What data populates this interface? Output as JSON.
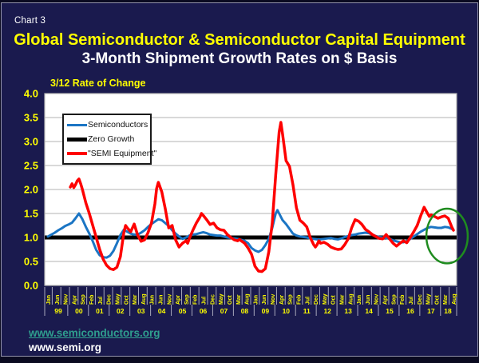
{
  "slide": {
    "chart_label": "Chart 3",
    "title": "Global Semiconductor & Semiconductor Capital Equipment",
    "subtitle": "3-Month Shipment Growth Rates on $ Basis",
    "links": [
      {
        "text": "www.semiconductors.org",
        "color": "#2f9e8e"
      },
      {
        "text": "www.semi.org",
        "color": "#ffffff"
      }
    ],
    "colors": {
      "background": "#1a1a4e",
      "title_yellow": "#ffff00",
      "text_white": "#ffffff",
      "frame_gray": "#9494ac"
    }
  },
  "chart_data": {
    "type": "line",
    "title": "3/12 Rate of Change",
    "x_unit": "months since Jan-1999, monthly series Jan-1999 to Aug-2018",
    "ylim": [
      0.0,
      4.0
    ],
    "y_ticks": [
      0.0,
      0.5,
      1.0,
      1.5,
      2.0,
      2.5,
      3.0,
      3.5,
      4.0
    ],
    "grid": true,
    "grid_color": "#b3b3b3",
    "plot_bg": "#ffffff",
    "axis_tick_color": "#a8a8bc",
    "axis_label_color": "#ffff00",
    "legend_position": "top-left",
    "x_tick_step_months": 5,
    "x_tick_labels": [
      "Jan",
      "Jun",
      "Nov",
      "Apr",
      "Sep",
      "Feb",
      "Jul",
      "Dec",
      "May",
      "Oct",
      "Mar",
      "Aug",
      "Jan",
      "Jun",
      "Nov",
      "Apr",
      "Sep",
      "Feb",
      "Jul",
      "Dec",
      "May",
      "Oct",
      "Mar",
      "Aug",
      "Jan",
      "Jun",
      "Nov",
      "Apr",
      "Sep",
      "Feb",
      "Jul",
      "Dec",
      "May",
      "Oct",
      "Mar",
      "Aug",
      "Jan",
      "Jun",
      "Nov",
      "Apr",
      "Sep",
      "Feb",
      "Jul",
      "Dec",
      "May",
      "Oct",
      "Mar",
      "Aug"
    ],
    "year_labels": [
      "99",
      "00",
      "01",
      "02",
      "03",
      "04",
      "05",
      "06",
      "07",
      "08",
      "09",
      "10",
      "11",
      "12",
      "13",
      "14",
      "15",
      "16",
      "17",
      "18"
    ],
    "draw_order": [
      1,
      0,
      2
    ],
    "series": [
      {
        "name": "Semiconductors",
        "color": "#1b75c4",
        "line_width": 3,
        "points": [
          [
            0,
            1.02
          ],
          [
            2,
            1.06
          ],
          [
            4,
            1.1
          ],
          [
            6,
            1.15
          ],
          [
            8,
            1.19
          ],
          [
            10,
            1.24
          ],
          [
            12,
            1.27
          ],
          [
            14,
            1.31
          ],
          [
            16,
            1.4
          ],
          [
            18,
            1.5
          ],
          [
            20,
            1.38
          ],
          [
            22,
            1.22
          ],
          [
            24,
            1.08
          ],
          [
            26,
            0.92
          ],
          [
            28,
            0.74
          ],
          [
            30,
            0.63
          ],
          [
            32,
            0.59
          ],
          [
            34,
            0.58
          ],
          [
            36,
            0.62
          ],
          [
            38,
            0.72
          ],
          [
            40,
            0.88
          ],
          [
            42,
            1.05
          ],
          [
            44,
            1.16
          ],
          [
            46,
            1.12
          ],
          [
            48,
            1.08
          ],
          [
            50,
            1.06
          ],
          [
            52,
            1.06
          ],
          [
            54,
            1.1
          ],
          [
            56,
            1.15
          ],
          [
            58,
            1.22
          ],
          [
            60,
            1.28
          ],
          [
            62,
            1.33
          ],
          [
            64,
            1.38
          ],
          [
            66,
            1.36
          ],
          [
            68,
            1.3
          ],
          [
            70,
            1.24
          ],
          [
            72,
            1.15
          ],
          [
            74,
            1.08
          ],
          [
            76,
            1.02
          ],
          [
            78,
            0.97
          ],
          [
            80,
            1.0
          ],
          [
            82,
            1.04
          ],
          [
            84,
            1.06
          ],
          [
            86,
            1.07
          ],
          [
            88,
            1.09
          ],
          [
            90,
            1.11
          ],
          [
            92,
            1.09
          ],
          [
            94,
            1.06
          ],
          [
            96,
            1.05
          ],
          [
            98,
            1.04
          ],
          [
            100,
            1.04
          ],
          [
            102,
            1.02
          ],
          [
            104,
            1.0
          ],
          [
            106,
            0.99
          ],
          [
            108,
            0.98
          ],
          [
            110,
            0.97
          ],
          [
            112,
            0.95
          ],
          [
            114,
            0.93
          ],
          [
            116,
            0.88
          ],
          [
            118,
            0.78
          ],
          [
            120,
            0.73
          ],
          [
            122,
            0.7
          ],
          [
            124,
            0.74
          ],
          [
            126,
            0.84
          ],
          [
            128,
            0.97
          ],
          [
            130,
            1.2
          ],
          [
            132,
            1.5
          ],
          [
            133,
            1.57
          ],
          [
            134,
            1.5
          ],
          [
            136,
            1.36
          ],
          [
            138,
            1.28
          ],
          [
            140,
            1.18
          ],
          [
            142,
            1.08
          ],
          [
            144,
            1.04
          ],
          [
            146,
            1.02
          ],
          [
            148,
            1.01
          ],
          [
            150,
            1.0
          ],
          [
            152,
            0.98
          ],
          [
            154,
            0.97
          ],
          [
            156,
            0.96
          ],
          [
            158,
            0.96
          ],
          [
            160,
            0.97
          ],
          [
            162,
            0.98
          ],
          [
            164,
            0.99
          ],
          [
            166,
            0.97
          ],
          [
            168,
            0.96
          ],
          [
            170,
            0.98
          ],
          [
            172,
            1.01
          ],
          [
            174,
            1.03
          ],
          [
            176,
            1.05
          ],
          [
            178,
            1.06
          ],
          [
            180,
            1.08
          ],
          [
            182,
            1.09
          ],
          [
            184,
            1.1
          ],
          [
            186,
            1.09
          ],
          [
            188,
            1.06
          ],
          [
            190,
            1.03
          ],
          [
            192,
            1.01
          ],
          [
            194,
            1.0
          ],
          [
            196,
            0.99
          ],
          [
            198,
            0.97
          ],
          [
            200,
            0.94
          ],
          [
            202,
            0.92
          ],
          [
            204,
            0.9
          ],
          [
            206,
            0.9
          ],
          [
            208,
            0.93
          ],
          [
            210,
            0.97
          ],
          [
            212,
            1.02
          ],
          [
            214,
            1.07
          ],
          [
            216,
            1.12
          ],
          [
            218,
            1.16
          ],
          [
            220,
            1.2
          ],
          [
            222,
            1.22
          ],
          [
            224,
            1.21
          ],
          [
            226,
            1.2
          ],
          [
            228,
            1.2
          ],
          [
            230,
            1.22
          ],
          [
            232,
            1.21
          ],
          [
            234,
            1.18
          ],
          [
            235,
            1.16
          ]
        ]
      },
      {
        "name": "Zero Growth",
        "color": "#000000",
        "line_width": 5,
        "full_width": true,
        "points": [
          [
            0,
            1.0
          ],
          [
            235,
            1.0
          ]
        ]
      },
      {
        "name": "\"SEMI Equipment\"",
        "color": "#fe0000",
        "line_width": 3.5,
        "points": [
          [
            13,
            2.05
          ],
          [
            14,
            2.12
          ],
          [
            15,
            2.04
          ],
          [
            16,
            2.1
          ],
          [
            17,
            2.18
          ],
          [
            18,
            2.22
          ],
          [
            19,
            2.12
          ],
          [
            20,
            2.0
          ],
          [
            22,
            1.72
          ],
          [
            24,
            1.5
          ],
          [
            26,
            1.25
          ],
          [
            28,
            1.0
          ],
          [
            30,
            0.75
          ],
          [
            32,
            0.55
          ],
          [
            34,
            0.42
          ],
          [
            36,
            0.35
          ],
          [
            38,
            0.33
          ],
          [
            40,
            0.38
          ],
          [
            42,
            0.6
          ],
          [
            44,
            1.1
          ],
          [
            45,
            1.25
          ],
          [
            46,
            1.2
          ],
          [
            48,
            1.12
          ],
          [
            50,
            1.28
          ],
          [
            52,
            1.05
          ],
          [
            54,
            0.92
          ],
          [
            56,
            0.95
          ],
          [
            58,
            1.1
          ],
          [
            60,
            1.3
          ],
          [
            62,
            1.7
          ],
          [
            63,
            2.02
          ],
          [
            64,
            2.15
          ],
          [
            66,
            1.95
          ],
          [
            68,
            1.6
          ],
          [
            70,
            1.2
          ],
          [
            72,
            1.25
          ],
          [
            74,
            0.95
          ],
          [
            76,
            0.8
          ],
          [
            78,
            0.88
          ],
          [
            80,
            0.93
          ],
          [
            81,
            0.88
          ],
          [
            82,
            0.98
          ],
          [
            84,
            1.15
          ],
          [
            86,
            1.3
          ],
          [
            88,
            1.42
          ],
          [
            89,
            1.5
          ],
          [
            90,
            1.46
          ],
          [
            92,
            1.37
          ],
          [
            94,
            1.27
          ],
          [
            96,
            1.3
          ],
          [
            98,
            1.2
          ],
          [
            100,
            1.16
          ],
          [
            102,
            1.15
          ],
          [
            104,
            1.06
          ],
          [
            106,
            1.0
          ],
          [
            108,
            0.95
          ],
          [
            110,
            0.93
          ],
          [
            111,
            0.96
          ],
          [
            112,
            0.93
          ],
          [
            114,
            0.88
          ],
          [
            116,
            0.78
          ],
          [
            118,
            0.65
          ],
          [
            120,
            0.4
          ],
          [
            122,
            0.3
          ],
          [
            124,
            0.29
          ],
          [
            126,
            0.35
          ],
          [
            128,
            0.7
          ],
          [
            130,
            1.3
          ],
          [
            132,
            2.3
          ],
          [
            134,
            3.2
          ],
          [
            135,
            3.4
          ],
          [
            136,
            3.15
          ],
          [
            138,
            2.6
          ],
          [
            140,
            2.48
          ],
          [
            142,
            2.1
          ],
          [
            144,
            1.62
          ],
          [
            146,
            1.36
          ],
          [
            148,
            1.3
          ],
          [
            150,
            1.22
          ],
          [
            152,
            1.0
          ],
          [
            154,
            0.85
          ],
          [
            155,
            0.8
          ],
          [
            156,
            0.85
          ],
          [
            157,
            0.93
          ],
          [
            158,
            0.88
          ],
          [
            160,
            0.9
          ],
          [
            162,
            0.86
          ],
          [
            164,
            0.8
          ],
          [
            166,
            0.77
          ],
          [
            168,
            0.75
          ],
          [
            170,
            0.76
          ],
          [
            172,
            0.85
          ],
          [
            174,
            0.97
          ],
          [
            176,
            1.2
          ],
          [
            178,
            1.37
          ],
          [
            180,
            1.34
          ],
          [
            182,
            1.27
          ],
          [
            184,
            1.17
          ],
          [
            186,
            1.12
          ],
          [
            188,
            1.06
          ],
          [
            190,
            1.02
          ],
          [
            192,
            0.98
          ],
          [
            194,
            0.97
          ],
          [
            196,
            1.06
          ],
          [
            198,
            0.97
          ],
          [
            200,
            0.88
          ],
          [
            202,
            0.82
          ],
          [
            204,
            0.88
          ],
          [
            206,
            0.93
          ],
          [
            208,
            0.89
          ],
          [
            210,
            1.0
          ],
          [
            212,
            1.12
          ],
          [
            214,
            1.25
          ],
          [
            216,
            1.45
          ],
          [
            218,
            1.63
          ],
          [
            220,
            1.5
          ],
          [
            221,
            1.44
          ],
          [
            222,
            1.47
          ],
          [
            224,
            1.44
          ],
          [
            226,
            1.4
          ],
          [
            228,
            1.43
          ],
          [
            230,
            1.45
          ],
          [
            232,
            1.4
          ],
          [
            234,
            1.22
          ],
          [
            235,
            1.15
          ]
        ]
      }
    ],
    "annotation": {
      "shape": "ellipse",
      "color": "#1f8c1f",
      "stroke_width": 2.5,
      "center_month": 231.3,
      "center_value": 1.03,
      "rx_months": 12,
      "ry_value": 0.57
    }
  }
}
